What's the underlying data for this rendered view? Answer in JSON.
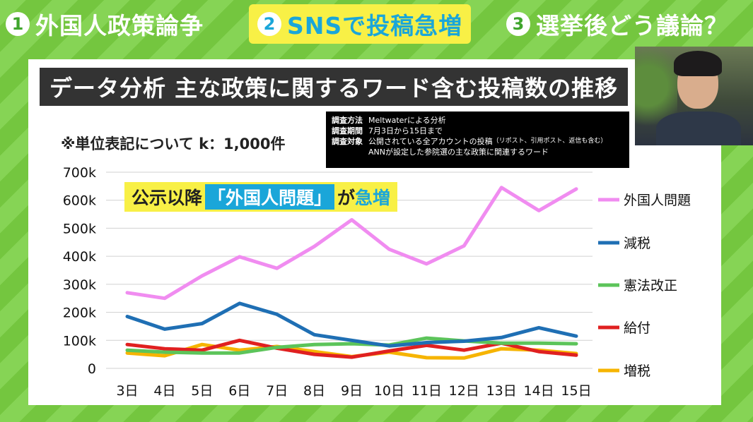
{
  "tabs": [
    {
      "num": "1",
      "label": "外国人政策論争",
      "active": false
    },
    {
      "num": "2",
      "label": "SNSで投稿急増",
      "active": true
    },
    {
      "num": "3",
      "label": "選挙後どう議論？",
      "active": false
    }
  ],
  "heading": "データ分析 主な政策に関するワード含む投稿数の推移",
  "method": {
    "rows": [
      {
        "key": "調査方法",
        "value": "Meltwaterによる分析"
      },
      {
        "key": "調査期間",
        "value": "7月3日から15日まで"
      },
      {
        "key": "調査対象",
        "value": "公開されている全アカウントの投稿",
        "note": "（リポスト、引用ポスト、返信も含む）"
      },
      {
        "key": "",
        "value": "ANNが設定した参院選の主な政策に関連するワード"
      }
    ]
  },
  "unit_note": "※単位表記について k：1,000件",
  "banner": {
    "pre": "公示以降",
    "highlight": "「外国人問題」",
    "mid": "が",
    "post": "急増"
  },
  "chart_data": {
    "type": "line",
    "x": [
      "3日",
      "4日",
      "5日",
      "6日",
      "7日",
      "8日",
      "9日",
      "10日",
      "11日",
      "12日",
      "13日",
      "14日",
      "15日"
    ],
    "ylim": [
      0,
      700000
    ],
    "yticks": [
      0,
      100000,
      200000,
      300000,
      400000,
      500000,
      600000,
      700000
    ],
    "ytick_labels": [
      "0",
      "100k",
      "200k",
      "300k",
      "400k",
      "500k",
      "600k",
      "700k"
    ],
    "grid": true,
    "legend_position": "right",
    "series": [
      {
        "name": "外国人問題",
        "color": "#f08cf0",
        "values": [
          270000,
          250000,
          330000,
          398000,
          357000,
          435000,
          530000,
          425000,
          373000,
          437000,
          645000,
          563000,
          640000
        ]
      },
      {
        "name": "減税",
        "color": "#1f6fb4",
        "values": [
          185000,
          140000,
          160000,
          232000,
          193000,
          120000,
          100000,
          80000,
          92000,
          97000,
          110000,
          145000,
          115000
        ]
      },
      {
        "name": "憲法改正",
        "color": "#5cc45a",
        "values": [
          65000,
          58000,
          55000,
          55000,
          75000,
          85000,
          88000,
          83000,
          108000,
          98000,
          90000,
          90000,
          88000
        ]
      },
      {
        "name": "給付",
        "color": "#e02020",
        "values": [
          85000,
          70000,
          65000,
          100000,
          72000,
          50000,
          40000,
          62000,
          82000,
          65000,
          90000,
          60000,
          47000
        ]
      },
      {
        "name": "増税",
        "color": "#f6b400",
        "values": [
          55000,
          45000,
          85000,
          65000,
          78000,
          60000,
          42000,
          58000,
          38000,
          37000,
          70000,
          65000,
          53000
        ]
      }
    ]
  }
}
